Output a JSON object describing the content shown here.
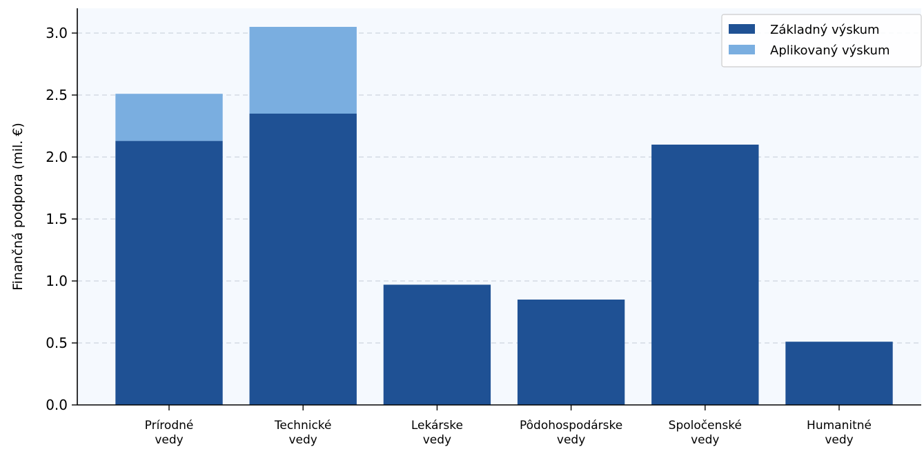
{
  "chart_data": {
    "type": "bar",
    "stacked": true,
    "categories": [
      [
        "Prírodné",
        "vedy"
      ],
      [
        "Technické",
        "vedy"
      ],
      [
        "Lekárske",
        "vedy"
      ],
      [
        "Pôdohospodárske",
        "vedy"
      ],
      [
        "Spoločenské",
        "vedy"
      ],
      [
        "Humanitné",
        "vedy"
      ]
    ],
    "series": [
      {
        "name": "Základný výskum",
        "values": [
          2.13,
          2.35,
          0.97,
          0.85,
          2.1,
          0.51
        ],
        "color": "#1f5194"
      },
      {
        "name": "Aplikovaný výskum",
        "values": [
          0.38,
          0.7,
          0,
          0,
          0,
          0
        ],
        "color": "#7aaee0"
      }
    ],
    "ylabel": "Finančná podpora (mil. €)",
    "ylim": [
      0,
      3.2
    ],
    "yticks": [
      "0.0",
      "0.5",
      "1.0",
      "1.5",
      "2.0",
      "2.5",
      "3.0"
    ],
    "grid": "y-dashed",
    "legend": "top-right",
    "plot_background": "#f5f9fe"
  }
}
